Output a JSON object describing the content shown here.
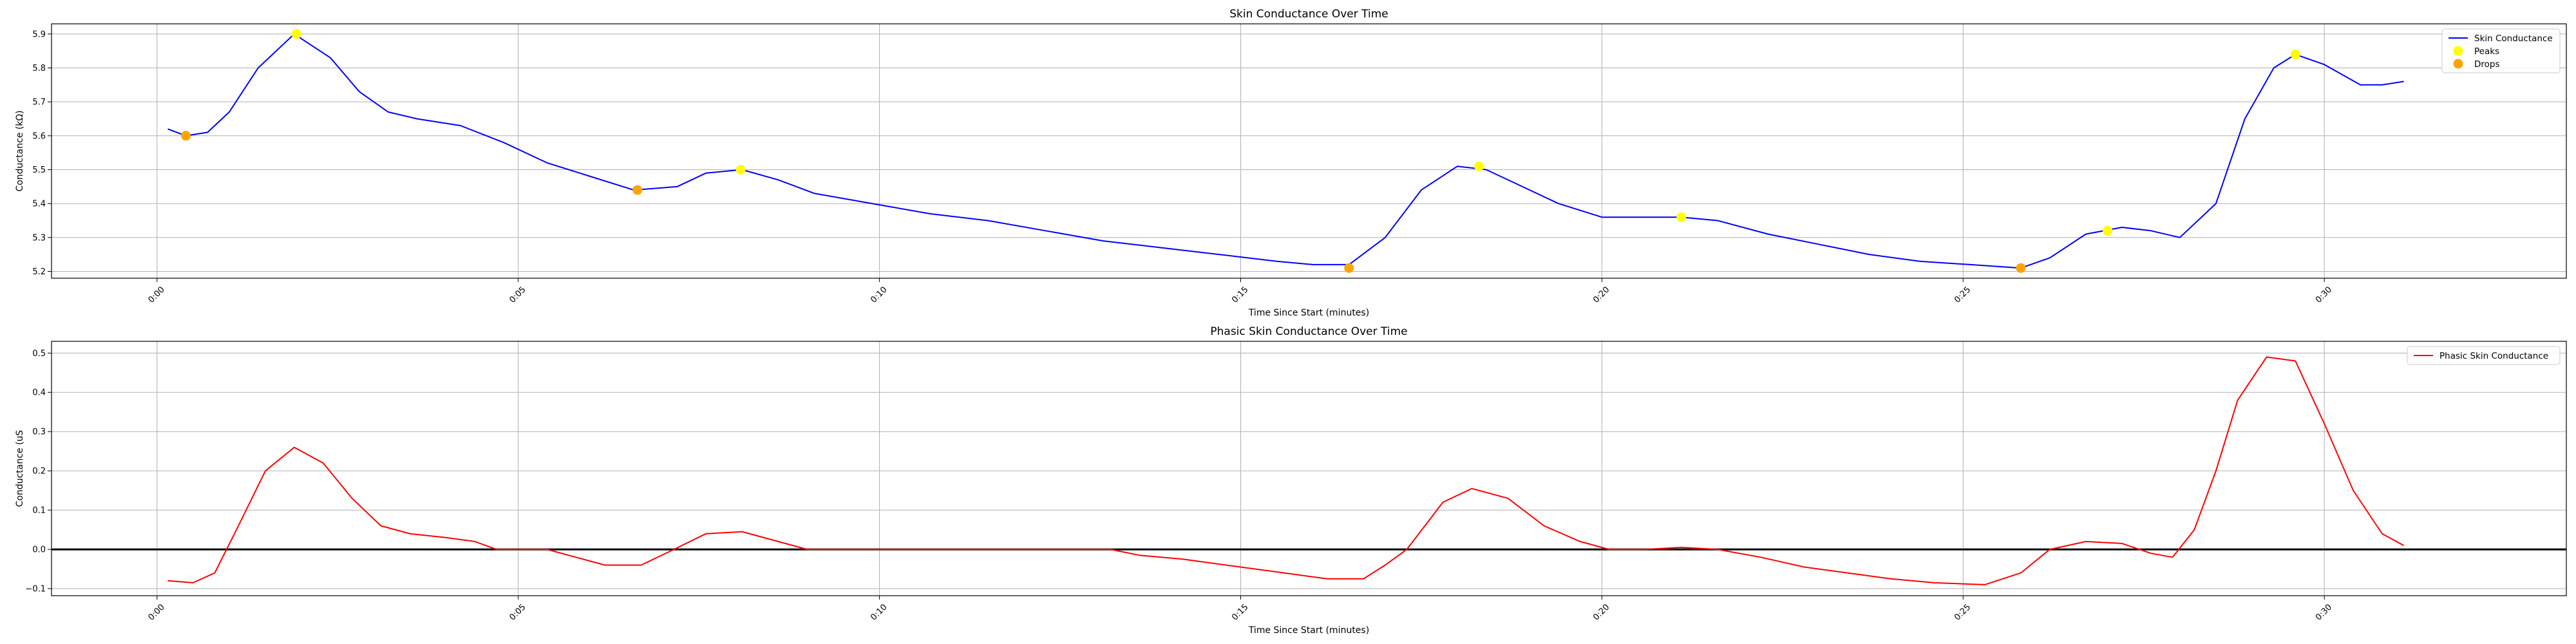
{
  "chart_data": [
    {
      "type": "line",
      "title": "Skin Conductance Over Time",
      "xlabel": "Time Since Start (minutes)",
      "ylabel": "Conductance (kΩ)",
      "xlim": [
        -0.0146,
        0.3335
      ],
      "ylim": [
        5.18,
        5.93
      ],
      "xticks": [
        0.0,
        0.05,
        0.1,
        0.15,
        0.2,
        0.25,
        0.3
      ],
      "xtick_labels": [
        "0:00",
        "0:05",
        "0:10",
        "0:15",
        "0:20",
        "0:25",
        "0:30"
      ],
      "yticks": [
        5.2,
        5.3,
        5.4,
        5.5,
        5.6,
        5.7,
        5.8,
        5.9
      ],
      "ytick_labels": [
        "5.2",
        "5.3",
        "5.4",
        "5.5",
        "5.6",
        "5.7",
        "5.8",
        "5.9"
      ],
      "grid": true,
      "legend_placement": "upper right",
      "series": [
        {
          "name": "Skin Conductance",
          "kind": "line",
          "color": "#0000ff",
          "x": [
            0.0015,
            0.004,
            0.007,
            0.01,
            0.014,
            0.019,
            0.024,
            0.028,
            0.032,
            0.036,
            0.042,
            0.048,
            0.054,
            0.06,
            0.066,
            0.072,
            0.076,
            0.081,
            0.086,
            0.091,
            0.099,
            0.107,
            0.115,
            0.123,
            0.131,
            0.139,
            0.147,
            0.155,
            0.16,
            0.165,
            0.17,
            0.175,
            0.18,
            0.184,
            0.188,
            0.194,
            0.2,
            0.206,
            0.211,
            0.216,
            0.223,
            0.23,
            0.237,
            0.244,
            0.251,
            0.258,
            0.262,
            0.267,
            0.272,
            0.276,
            0.28,
            0.285,
            0.289,
            0.293,
            0.296,
            0.3,
            0.305,
            0.308,
            0.311
          ],
          "y": [
            5.62,
            5.6,
            5.61,
            5.67,
            5.8,
            5.9,
            5.83,
            5.73,
            5.67,
            5.65,
            5.63,
            5.58,
            5.52,
            5.48,
            5.44,
            5.45,
            5.49,
            5.5,
            5.47,
            5.43,
            5.4,
            5.37,
            5.35,
            5.32,
            5.29,
            5.27,
            5.25,
            5.23,
            5.22,
            5.22,
            5.3,
            5.44,
            5.51,
            5.5,
            5.46,
            5.4,
            5.36,
            5.36,
            5.36,
            5.35,
            5.31,
            5.28,
            5.25,
            5.23,
            5.22,
            5.21,
            5.24,
            5.31,
            5.33,
            5.32,
            5.3,
            5.4,
            5.65,
            5.8,
            5.84,
            5.81,
            5.75,
            5.75,
            5.76
          ]
        },
        {
          "name": "Peaks",
          "kind": "scatter",
          "color": "#ffff00",
          "x": [
            0.0193,
            0.0808,
            0.183,
            0.211,
            0.27,
            0.296
          ],
          "y": [
            5.9,
            5.5,
            5.51,
            5.36,
            5.32,
            5.84
          ]
        },
        {
          "name": "Drops",
          "kind": "scatter",
          "color": "#ffa500",
          "x": [
            0.004,
            0.0665,
            0.165,
            0.258
          ],
          "y": [
            5.6,
            5.44,
            5.21,
            5.21
          ]
        }
      ]
    },
    {
      "type": "line",
      "title": "Phasic Skin Conductance Over Time",
      "xlabel": "Time Since Start (minutes)",
      "ylabel": "Conductance (uS",
      "xlim": [
        -0.0146,
        0.3335
      ],
      "ylim": [
        -0.118,
        0.53
      ],
      "xticks": [
        0.0,
        0.05,
        0.1,
        0.15,
        0.2,
        0.25,
        0.3
      ],
      "xtick_labels": [
        "0:00",
        "0:05",
        "0:10",
        "0:15",
        "0:20",
        "0:25",
        "0:30"
      ],
      "yticks": [
        -0.1,
        0.0,
        0.1,
        0.2,
        0.3,
        0.4,
        0.5
      ],
      "ytick_labels": [
        "−0.1",
        "0.0",
        "0.1",
        "0.2",
        "0.3",
        "0.4",
        "0.5"
      ],
      "grid": true,
      "legend_placement": "upper right",
      "hline": 0,
      "series": [
        {
          "name": "Phasic Skin Conductance",
          "kind": "line",
          "color": "#ff0000",
          "x": [
            0.0015,
            0.005,
            0.008,
            0.011,
            0.015,
            0.019,
            0.023,
            0.027,
            0.031,
            0.035,
            0.04,
            0.044,
            0.047,
            0.054,
            0.058,
            0.062,
            0.067,
            0.071,
            0.076,
            0.081,
            0.086,
            0.09,
            0.1,
            0.12,
            0.132,
            0.136,
            0.142,
            0.15,
            0.156,
            0.162,
            0.167,
            0.17,
            0.173,
            0.178,
            0.182,
            0.187,
            0.192,
            0.197,
            0.201,
            0.206,
            0.211,
            0.216,
            0.222,
            0.228,
            0.234,
            0.24,
            0.246,
            0.253,
            0.258,
            0.262,
            0.267,
            0.272,
            0.276,
            0.279,
            0.282,
            0.285,
            0.288,
            0.292,
            0.296,
            0.3,
            0.304,
            0.308,
            0.311
          ],
          "y": [
            -0.08,
            -0.085,
            -0.06,
            0.05,
            0.2,
            0.26,
            0.22,
            0.13,
            0.06,
            0.04,
            0.03,
            0.02,
            0.0,
            0.0,
            -0.02,
            -0.04,
            -0.04,
            -0.005,
            0.04,
            0.045,
            0.02,
            0.0,
            0.0,
            0.0,
            0.0,
            -0.015,
            -0.025,
            -0.045,
            -0.06,
            -0.075,
            -0.075,
            -0.04,
            0.0,
            0.12,
            0.155,
            0.13,
            0.06,
            0.02,
            0.0,
            0.0,
            0.005,
            0.0,
            -0.02,
            -0.045,
            -0.06,
            -0.075,
            -0.085,
            -0.09,
            -0.06,
            0.0,
            0.02,
            0.015,
            -0.01,
            -0.02,
            0.05,
            0.2,
            0.38,
            0.49,
            0.48,
            0.32,
            0.15,
            0.04,
            0.01
          ]
        }
      ]
    }
  ]
}
